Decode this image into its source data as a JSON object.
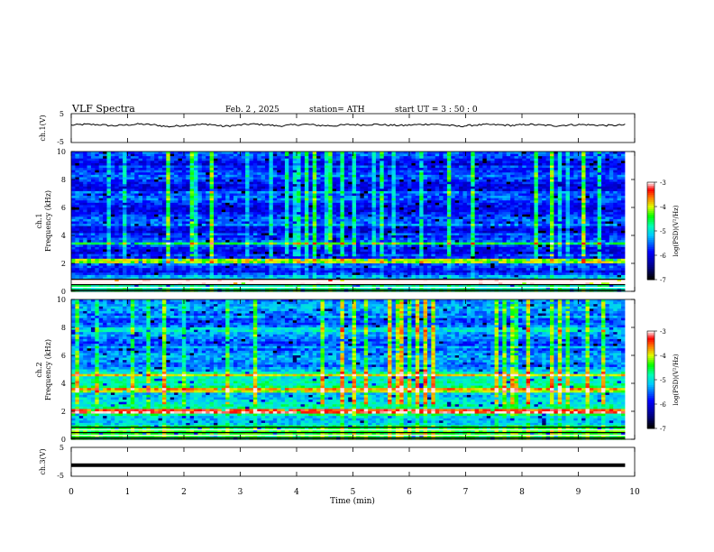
{
  "header": {
    "title": "VLF  Spectra",
    "date": "Feb. 2  , 2025",
    "station": "station= ATH",
    "start": "start  UT  =   3  : 50 : 0"
  },
  "chart_data": [
    {
      "type": "line",
      "panel": "ch1-waveform",
      "ylabel": "ch.1(V)",
      "ylim": [
        -5,
        5
      ],
      "yticks": [
        "5",
        "-5"
      ],
      "series": [
        {
          "values": [
            1.0,
            1.3,
            1.2,
            0.8,
            1.1,
            1.4,
            1.1,
            0.5,
            0.9,
            1.2,
            1.3,
            0.6,
            1.0,
            1.4,
            1.2,
            0.7,
            1.1,
            1.3,
            0.9,
            0.8,
            1.2,
            1.1,
            1.3,
            1.0,
            0.9,
            1.2,
            1.4,
            1.1,
            0.6,
            1.0,
            1.2,
            1.1,
            0.9,
            1.3,
            1.0,
            0.8,
            1.1,
            1.2,
            1.0,
            0.9,
            1.1
          ]
        }
      ],
      "x_range_min": [
        0,
        9.83
      ]
    },
    {
      "type": "heatmap",
      "panel": "ch1-spectrogram",
      "ylabel": "ch.1\nFrequency  (kHz)",
      "ylim": [
        0,
        10
      ],
      "yticks": [
        "0",
        "2",
        "4",
        "6",
        "8",
        "10"
      ],
      "colorbar": {
        "label": "log(PSD)(V²/Hz)",
        "range": [
          -7,
          -3
        ],
        "ticks": [
          "-3",
          "-4",
          "-5",
          "-6",
          "-7"
        ]
      }
    },
    {
      "type": "heatmap",
      "panel": "ch2-spectrogram",
      "ylabel": "ch.2\nFrequency  (kHz)",
      "ylim": [
        0,
        10
      ],
      "yticks": [
        "0",
        "2",
        "4",
        "6",
        "8",
        "10"
      ],
      "colorbar": {
        "label": "log(PSD)(V²/Hz)",
        "range": [
          -7,
          -3
        ],
        "ticks": [
          "-3",
          "-4",
          "-5",
          "-6",
          "-7"
        ]
      }
    },
    {
      "type": "line",
      "panel": "ch3-waveform",
      "ylabel": "ch.3(V)",
      "ylim": [
        -5,
        5
      ],
      "yticks": [
        "5",
        "-5"
      ],
      "series": [
        {
          "values": [
            -1.2,
            -1.2
          ]
        }
      ]
    }
  ],
  "xaxis": {
    "label": "Time  (min)",
    "ticks": [
      "0",
      "1",
      "2",
      "3",
      "4",
      "5",
      "6",
      "7",
      "8",
      "9",
      "10"
    ]
  },
  "colors": {
    "black": "#000000",
    "navy": "#000080",
    "blue": "#0000ff",
    "cyan": "#00ffff",
    "green": "#00ff00",
    "yellow": "#ffff00",
    "red": "#ff0000",
    "pink": "#ffdddd"
  }
}
